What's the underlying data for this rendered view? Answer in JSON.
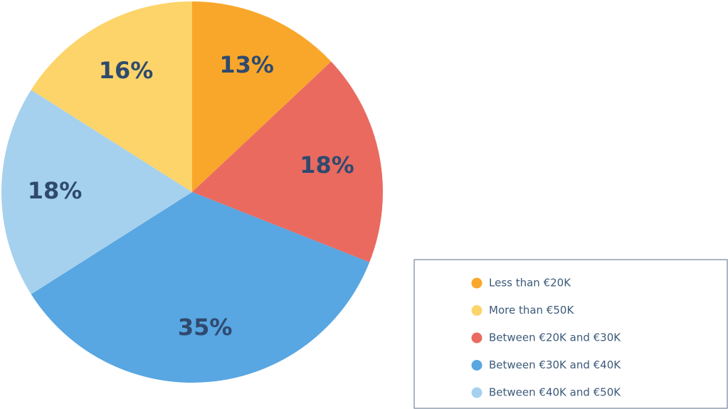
{
  "chart_data": {
    "type": "pie",
    "categories": [
      "Less than €20K",
      "Between €20K and €30K",
      "Between €30K and €40K",
      "Between €40K and €50K",
      "More than €50K"
    ],
    "values": [
      13,
      18,
      35,
      18,
      16
    ],
    "value_labels": [
      "13%",
      "18%",
      "35%",
      "18%",
      "16%"
    ],
    "colors": [
      "#f9a72b",
      "#ea6a60",
      "#58a6e2",
      "#a5d1ee",
      "#fcd46a"
    ],
    "legend": "bottom-right"
  }
}
